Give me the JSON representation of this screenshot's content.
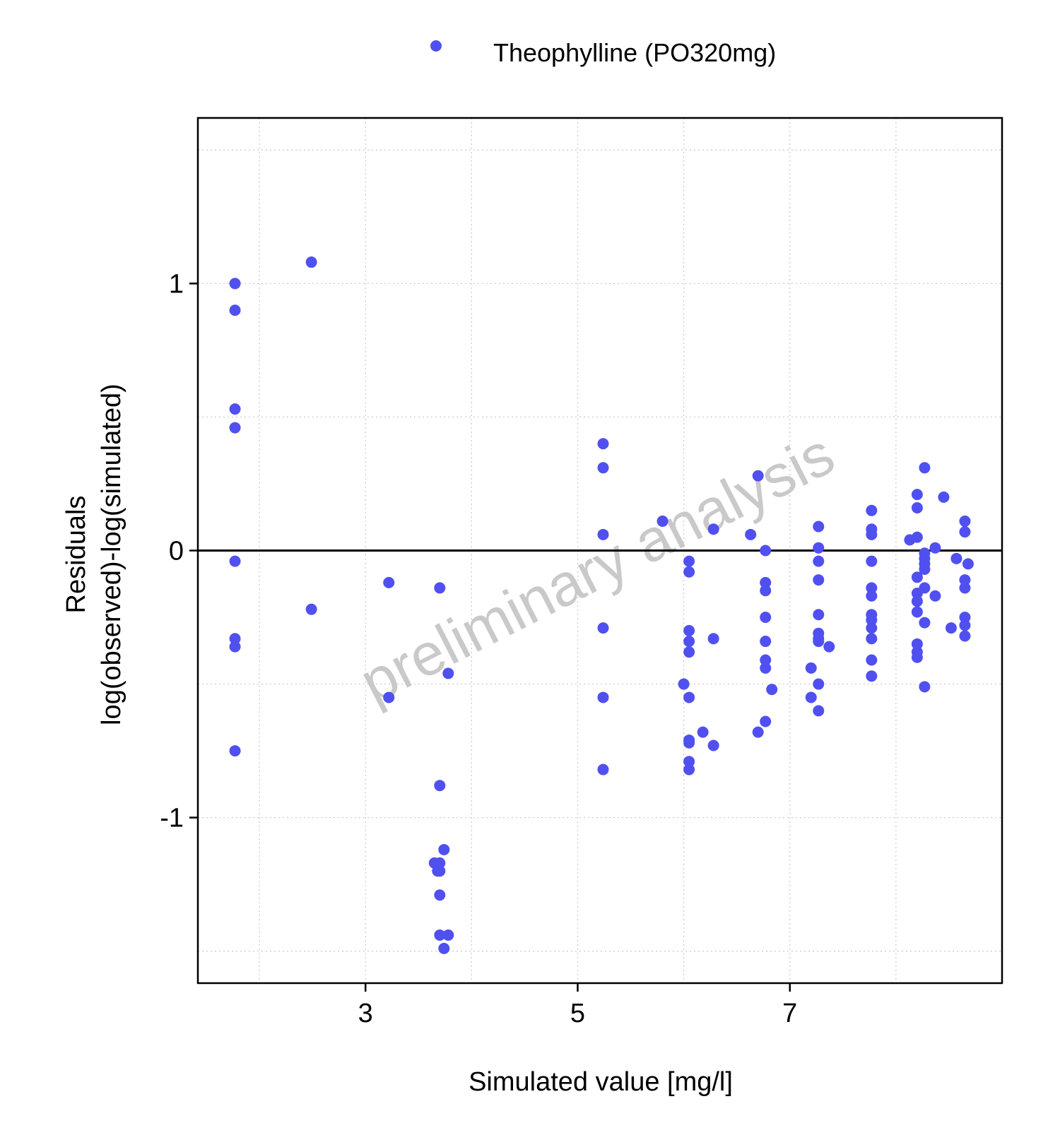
{
  "chart_data": {
    "type": "scatter",
    "xlabel": "Simulated value [mg/l]",
    "ylabel": [
      "Residuals",
      "log(observed)-log(simulated)"
    ],
    "watermark": "preliminary analysis",
    "xlim": [
      1.42,
      9.0
    ],
    "ylim": [
      -1.62,
      1.62
    ],
    "x_ticks": [
      3,
      5,
      7
    ],
    "x_tick_labels": [
      "3",
      "5",
      "7"
    ],
    "y_ticks": [
      -1,
      0,
      1
    ],
    "y_tick_labels": [
      "-1",
      "0",
      "1"
    ],
    "x_minor_grid": [
      2,
      3,
      4,
      5,
      6,
      7,
      8
    ],
    "y_minor_grid": [
      -1.5,
      -1,
      -0.5,
      0.5,
      1,
      1.5
    ],
    "grid": "dotted",
    "reference_line_y": 0,
    "legend_position": "top",
    "series": [
      {
        "name": "Theophylline (PO320mg)",
        "color": "#5050f0",
        "points": [
          [
            1.77,
            1.0
          ],
          [
            1.77,
            0.9
          ],
          [
            1.77,
            0.53
          ],
          [
            1.77,
            0.46
          ],
          [
            1.77,
            -0.04
          ],
          [
            1.77,
            -0.33
          ],
          [
            1.77,
            -0.36
          ],
          [
            1.77,
            -0.75
          ],
          [
            2.49,
            1.08
          ],
          [
            2.49,
            -0.22
          ],
          [
            3.22,
            -0.12
          ],
          [
            3.22,
            -0.55
          ],
          [
            3.65,
            -1.17
          ],
          [
            3.68,
            -1.2
          ],
          [
            3.7,
            -1.17
          ],
          [
            3.7,
            -1.2
          ],
          [
            3.7,
            -0.14
          ],
          [
            3.7,
            -0.88
          ],
          [
            3.7,
            -1.29
          ],
          [
            3.7,
            -1.44
          ],
          [
            3.74,
            -1.12
          ],
          [
            3.74,
            -1.49
          ],
          [
            3.78,
            -1.44
          ],
          [
            3.78,
            -0.46
          ],
          [
            5.24,
            0.4
          ],
          [
            5.24,
            0.31
          ],
          [
            5.24,
            0.06
          ],
          [
            5.24,
            -0.29
          ],
          [
            5.24,
            -0.55
          ],
          [
            5.24,
            -0.82
          ],
          [
            5.8,
            0.11
          ],
          [
            6.0,
            -0.5
          ],
          [
            6.05,
            -0.04
          ],
          [
            6.05,
            -0.08
          ],
          [
            6.05,
            -0.3
          ],
          [
            6.05,
            -0.34
          ],
          [
            6.05,
            -0.38
          ],
          [
            6.05,
            -0.55
          ],
          [
            6.05,
            -0.71
          ],
          [
            6.05,
            -0.72
          ],
          [
            6.05,
            -0.79
          ],
          [
            6.05,
            -0.82
          ],
          [
            6.18,
            -0.68
          ],
          [
            6.28,
            0.08
          ],
          [
            6.28,
            -0.33
          ],
          [
            6.28,
            -0.73
          ],
          [
            6.63,
            0.06
          ],
          [
            6.7,
            0.28
          ],
          [
            6.7,
            -0.68
          ],
          [
            6.77,
            0.0
          ],
          [
            6.77,
            -0.12
          ],
          [
            6.77,
            -0.15
          ],
          [
            6.77,
            -0.25
          ],
          [
            6.77,
            -0.34
          ],
          [
            6.77,
            -0.41
          ],
          [
            6.77,
            -0.44
          ],
          [
            6.77,
            -0.64
          ],
          [
            6.83,
            -0.52
          ],
          [
            7.2,
            -0.44
          ],
          [
            7.2,
            -0.55
          ],
          [
            7.27,
            0.09
          ],
          [
            7.27,
            0.01
          ],
          [
            7.27,
            -0.04
          ],
          [
            7.27,
            -0.11
          ],
          [
            7.27,
            -0.24
          ],
          [
            7.27,
            -0.31
          ],
          [
            7.27,
            -0.33
          ],
          [
            7.27,
            -0.34
          ],
          [
            7.27,
            -0.5
          ],
          [
            7.27,
            -0.6
          ],
          [
            7.37,
            -0.36
          ],
          [
            7.77,
            0.15
          ],
          [
            7.77,
            0.08
          ],
          [
            7.77,
            0.06
          ],
          [
            7.77,
            -0.04
          ],
          [
            7.77,
            -0.14
          ],
          [
            7.77,
            -0.17
          ],
          [
            7.77,
            -0.24
          ],
          [
            7.77,
            -0.26
          ],
          [
            7.77,
            -0.29
          ],
          [
            7.77,
            -0.33
          ],
          [
            7.77,
            -0.41
          ],
          [
            7.77,
            -0.47
          ],
          [
            8.13,
            0.04
          ],
          [
            8.2,
            0.21
          ],
          [
            8.2,
            0.16
          ],
          [
            8.2,
            0.05
          ],
          [
            8.2,
            -0.1
          ],
          [
            8.2,
            -0.16
          ],
          [
            8.2,
            -0.19
          ],
          [
            8.2,
            -0.23
          ],
          [
            8.2,
            -0.35
          ],
          [
            8.2,
            -0.38
          ],
          [
            8.2,
            -0.4
          ],
          [
            8.27,
            0.31
          ],
          [
            8.27,
            -0.01
          ],
          [
            8.27,
            -0.03
          ],
          [
            8.27,
            -0.05
          ],
          [
            8.27,
            -0.07
          ],
          [
            8.27,
            -0.14
          ],
          [
            8.27,
            -0.27
          ],
          [
            8.27,
            -0.51
          ],
          [
            8.37,
            0.01
          ],
          [
            8.37,
            -0.17
          ],
          [
            8.45,
            0.2
          ],
          [
            8.52,
            -0.29
          ],
          [
            8.57,
            -0.03
          ],
          [
            8.65,
            0.11
          ],
          [
            8.65,
            0.07
          ],
          [
            8.65,
            -0.11
          ],
          [
            8.65,
            -0.14
          ],
          [
            8.65,
            -0.25
          ],
          [
            8.65,
            -0.28
          ],
          [
            8.65,
            -0.32
          ],
          [
            8.68,
            -0.05
          ]
        ]
      }
    ]
  }
}
